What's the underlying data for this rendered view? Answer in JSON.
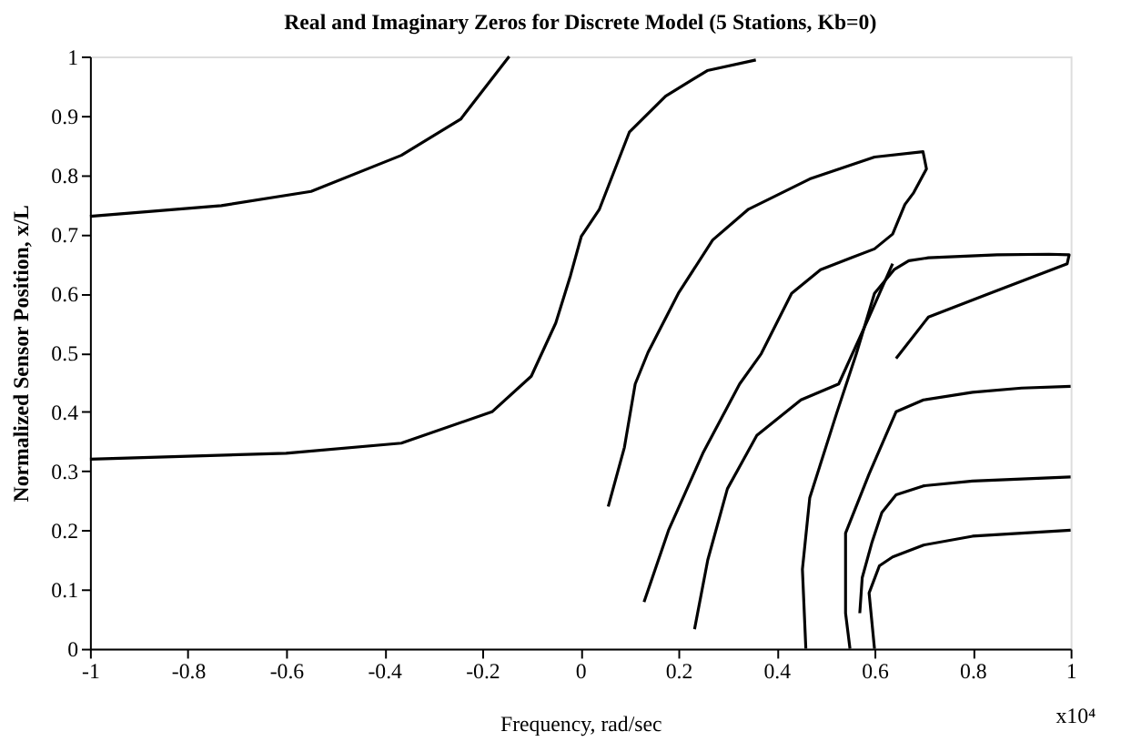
{
  "chart_data": {
    "type": "line",
    "title": "Real and Imaginary Zeros for Discrete Model (5 Stations, Kb=0)",
    "xlabel": "Frequency, rad/sec",
    "ylabel": "Normalized Sensor Position, x/L",
    "annotations": [
      "x10⁴"
    ],
    "xlim": [
      -1,
      1
    ],
    "xticks": [
      -1,
      -0.8,
      -0.6,
      -0.4,
      -0.2,
      0,
      0.2,
      0.4,
      0.6,
      0.8,
      1
    ],
    "ylim": [
      0,
      1
    ],
    "yticks": [
      0,
      0.1,
      0.2,
      0.3,
      0.4,
      0.5,
      0.6,
      0.7,
      0.8,
      0.9,
      1
    ],
    "grid": false,
    "legend": false,
    "line_style": "solid",
    "series": [
      {
        "color": "#000000",
        "x": [
          -1,
          -0.732,
          -0.549,
          -0.365,
          -0.244,
          -0.145
        ],
        "values": [
          0.73,
          0.748,
          0.772,
          0.833,
          0.894,
          1.0
        ]
      },
      {
        "color": "#000000",
        "x": [
          -1,
          -0.6,
          -0.365,
          -0.18,
          -0.1,
          -0.05,
          -0.02,
          0.002,
          0.039,
          0.1,
          0.174,
          0.259,
          0.358
        ],
        "values": [
          0.32,
          0.33,
          0.347,
          0.4,
          0.46,
          0.55,
          0.63,
          0.696,
          0.742,
          0.872,
          0.933,
          0.976,
          0.994
        ]
      },
      {
        "color": "#000000",
        "x": [
          0.057,
          0.09,
          0.112,
          0.138,
          0.2,
          0.27,
          0.343,
          0.468,
          0.6,
          0.699,
          0.706,
          0.68,
          0.662,
          0.637,
          0.6,
          0.552,
          0.49,
          0.431,
          0.369,
          0.325,
          0.25,
          0.18,
          0.13
        ],
        "values": [
          0.24,
          0.34,
          0.447,
          0.5,
          0.6,
          0.69,
          0.742,
          0.793,
          0.83,
          0.839,
          0.81,
          0.77,
          0.75,
          0.7,
          0.675,
          0.66,
          0.64,
          0.6,
          0.498,
          0.447,
          0.33,
          0.2,
          0.079
        ]
      },
      {
        "color": "#000000",
        "x": [
          0.233,
          0.26,
          0.3,
          0.36,
          0.45,
          0.527,
          0.589,
          0.637
        ],
        "values": [
          0.033,
          0.15,
          0.27,
          0.36,
          0.42,
          0.447,
          0.56,
          0.65
        ]
      },
      {
        "color": "#000000",
        "x": [
          0.46,
          0.453,
          0.468,
          0.523,
          0.563,
          0.6,
          0.62,
          0.64,
          0.67,
          0.71,
          0.85,
          0.956,
          0.997,
          0.993,
          0.835,
          0.71,
          0.644
        ],
        "values": [
          0.0,
          0.134,
          0.255,
          0.398,
          0.498,
          0.6,
          0.62,
          0.64,
          0.655,
          0.66,
          0.665,
          0.666,
          0.665,
          0.65,
          0.6,
          0.56,
          0.49
        ]
      },
      {
        "color": "#000000",
        "x": [
          0.55,
          0.541,
          0.541,
          0.589,
          0.644,
          0.7,
          0.8,
          0.9,
          1.0
        ],
        "values": [
          0.0,
          0.06,
          0.195,
          0.295,
          0.4,
          0.42,
          0.433,
          0.44,
          0.443
        ]
      },
      {
        "color": "#000000",
        "x": [
          0.57,
          0.575,
          0.595,
          0.615,
          0.644,
          0.7,
          0.8,
          1.0
        ],
        "values": [
          0.06,
          0.12,
          0.18,
          0.23,
          0.26,
          0.275,
          0.283,
          0.29
        ]
      },
      {
        "color": "#000000",
        "x": [
          0.6,
          0.589,
          0.61,
          0.637,
          0.7,
          0.8,
          1.0
        ],
        "values": [
          0.0,
          0.094,
          0.14,
          0.155,
          0.175,
          0.19,
          0.2
        ]
      }
    ]
  }
}
